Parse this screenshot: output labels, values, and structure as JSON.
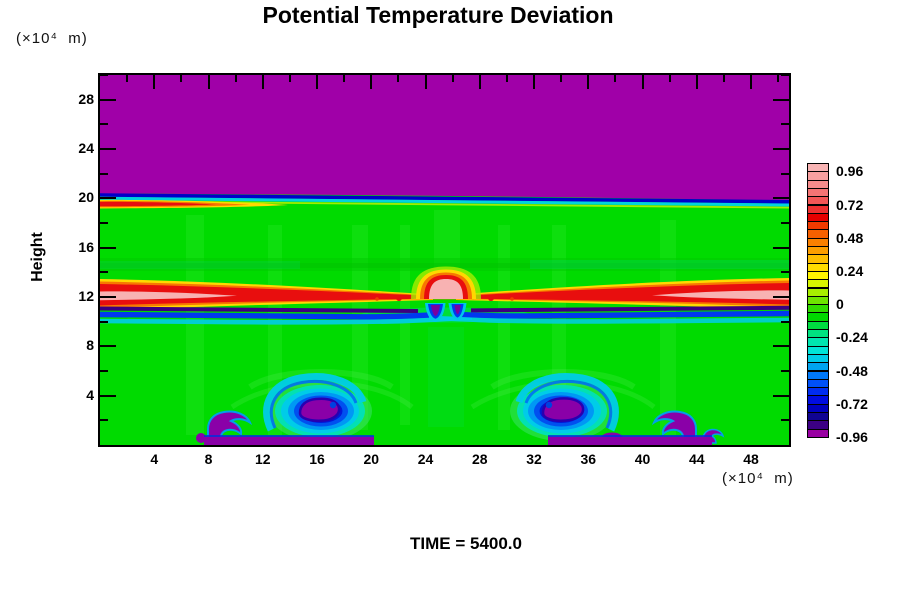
{
  "title": "Potential Temperature Deviation",
  "time_label": "TIME = 5400.0",
  "axes": {
    "y_title": "Height",
    "y_unit_label": "(×10⁴  m)",
    "x_unit_label": "(×10⁴  m)"
  },
  "colors": {
    "background_green": "#00DB00",
    "cap_purple": "#A000A8",
    "warm_band_red": "#E80E0E",
    "warm_core_pink": "#F8B2B2",
    "cold_core_purple": "#8A00A8"
  },
  "chart_data": {
    "type": "heatmap",
    "title": "Potential Temperature Deviation",
    "time_label": "TIME = 5400.0",
    "xlabel": "(×10⁴ m)",
    "ylabel": "Height (×10⁴ m)",
    "xlim": [
      0,
      50.8
    ],
    "ylim": [
      0,
      30
    ],
    "x_ticks_major": [
      4,
      8,
      12,
      16,
      20,
      24,
      28,
      32,
      36,
      40,
      44,
      48
    ],
    "x_ticks_minor": [
      2,
      6,
      10,
      14,
      18,
      22,
      26,
      30,
      34,
      38,
      42,
      46,
      50
    ],
    "y_ticks_major": [
      4,
      8,
      12,
      16,
      20,
      24,
      28
    ],
    "y_ticks_minor": [
      2,
      6,
      10,
      14,
      18,
      22,
      26,
      30
    ],
    "grid": false,
    "legend_position": "right-colorbar",
    "colorbar": {
      "tick_labels": [
        "0.96",
        "0.72",
        "0.48",
        "0.24",
        "0",
        "-0.24",
        "-0.48",
        "-0.72",
        "-0.96"
      ],
      "level_step": 0.06,
      "colors": [
        "#F8B4B4",
        "#F8A0A0",
        "#F68C8C",
        "#F47474",
        "#F25656",
        "#EE3030",
        "#E60000",
        "#F03A00",
        "#F66000",
        "#FA8000",
        "#FC9E00",
        "#FEBE00",
        "#FFDC00",
        "#FFF400",
        "#D8F500",
        "#A8EE00",
        "#6EE400",
        "#30DC00",
        "#00D800",
        "#00DC40",
        "#00E280",
        "#00E6B0",
        "#00E4D8",
        "#00CCE8",
        "#00A4F0",
        "#0078F8",
        "#0050F8",
        "#002CF0",
        "#000CE0",
        "#0000BE",
        "#100492",
        "#3C0084",
        "#9900A2"
      ]
    },
    "field_features": [
      {
        "name": "cap-region",
        "value": "<= -0.96",
        "desc": "uniform purple region above height ~20 across full width"
      },
      {
        "name": "interface-sheet",
        "value": "-0.2 to -0.9",
        "desc": "thin dark-blue over cyan sheet at height ~20, sloping slightly down toward the right, with a red/orange warm streak (~+0.8) hugging the left edge"
      },
      {
        "name": "inversion-band",
        "value": "+0.5 to > +0.96",
        "desc": "strong warm band at height ~12 thick at both side edges with pale pink cores, thinning to a red filament at mid-domain; indigo/blue/cyan cold sheet (-0.5 to -0.96) directly beneath it"
      },
      {
        "name": "updraft-dome",
        "value": "> +0.96",
        "desc": "pale pink dome with red/orange/yellow rings centered at x ~25.5, rising from height 12 to ~13.5"
      },
      {
        "name": "cold-pockets",
        "value": "<= -0.96",
        "desc": "two small purple pockets with blue/cyan rims just below the dome at x ~24.8 and ~26.4"
      },
      {
        "name": "boundary-vortices",
        "value": "<= -0.96 cores",
        "desc": "two near-surface rotors at x ~16 and x ~34 with purple cores and concentric blue/cyan rings plus curling spiral arms"
      },
      {
        "name": "breaking-waves",
        "value": "<= -0.96",
        "desc": "purple breaking-wave lobes near the surface at x ~9 and x ~42, connected by purple strips along the bottom boundary"
      },
      {
        "name": "background",
        "value": "~0",
        "desc": "bright green ambient field with faint gravity-wave striations and a slightly darker band at height ~14-15"
      }
    ]
  }
}
